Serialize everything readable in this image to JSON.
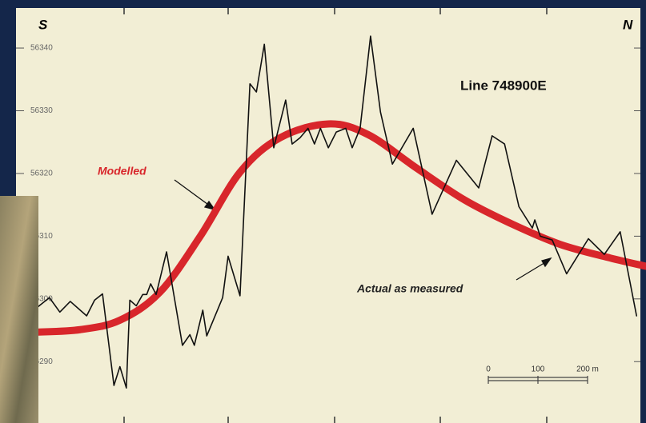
{
  "chart_data": {
    "type": "line",
    "title": "Line 748900E",
    "left_label": "S",
    "right_label": "N",
    "annotations": [
      "Modelled",
      "Actual as measured"
    ],
    "scale_bar": [
      "0",
      "100",
      "200 m"
    ],
    "xlim": [
      0,
      1229
    ],
    "ylim": [
      56282,
      56346
    ],
    "yticks": [
      56290,
      56300,
      56310,
      56320,
      56330,
      56340
    ],
    "series": [
      {
        "name": "Modelled",
        "color": "#d8262b",
        "x": [
          0,
          89,
          169,
          250,
          331,
          411,
          492,
          589,
          669,
          766,
          863,
          960,
          1056,
          1153,
          1229
        ],
        "values": [
          56294.7,
          56295.1,
          56296.6,
          56301.1,
          56310.0,
          56320.2,
          56325.7,
          56327.9,
          56326.2,
          56320.9,
          56315.8,
          56311.9,
          56308.7,
          56306.6,
          56305.2
        ]
      },
      {
        "name": "Actual as measured",
        "color": "#111111",
        "x": [
          0,
          27,
          48,
          69,
          102,
          118,
          134,
          157,
          169,
          182,
          189,
          202,
          215,
          223,
          231,
          242,
          263,
          295,
          310,
          319,
          336,
          344,
          376,
          387,
          411,
          431,
          444,
          460,
          479,
          503,
          516,
          532,
          548,
          561,
          573,
          589,
          605,
          624,
          637,
          653,
          674,
          694,
          718,
          760,
          798,
          847,
          892,
          919,
          944,
          973,
          1000,
          1005,
          1016,
          1040,
          1069,
          1113,
          1145,
          1177,
          1210
        ],
        "values": [
          56298.5,
          56300.2,
          56297.9,
          56299.6,
          56297.3,
          56299.8,
          56300.8,
          56286.2,
          56289.2,
          56285.8,
          56299.8,
          56298.9,
          56300.7,
          56300.7,
          56302.4,
          56300.7,
          56307.5,
          56292.6,
          56294.3,
          56292.6,
          56298.2,
          56294.1,
          56300.2,
          56306.8,
          56300.5,
          56334.3,
          56333.0,
          56340.6,
          56324.1,
          56331.7,
          56324.7,
          56325.7,
          56327.2,
          56324.7,
          56327.2,
          56324.1,
          56326.6,
          56327.2,
          56324.1,
          56327.2,
          56341.9,
          56329.8,
          56321.5,
          56327.2,
          56313.5,
          56322.1,
          56317.7,
          56326.0,
          56324.7,
          56314.7,
          56311.3,
          56312.6,
          56310.0,
          56309.4,
          56304.0,
          56309.6,
          56307.1,
          56310.7,
          56297.3
        ]
      }
    ]
  }
}
